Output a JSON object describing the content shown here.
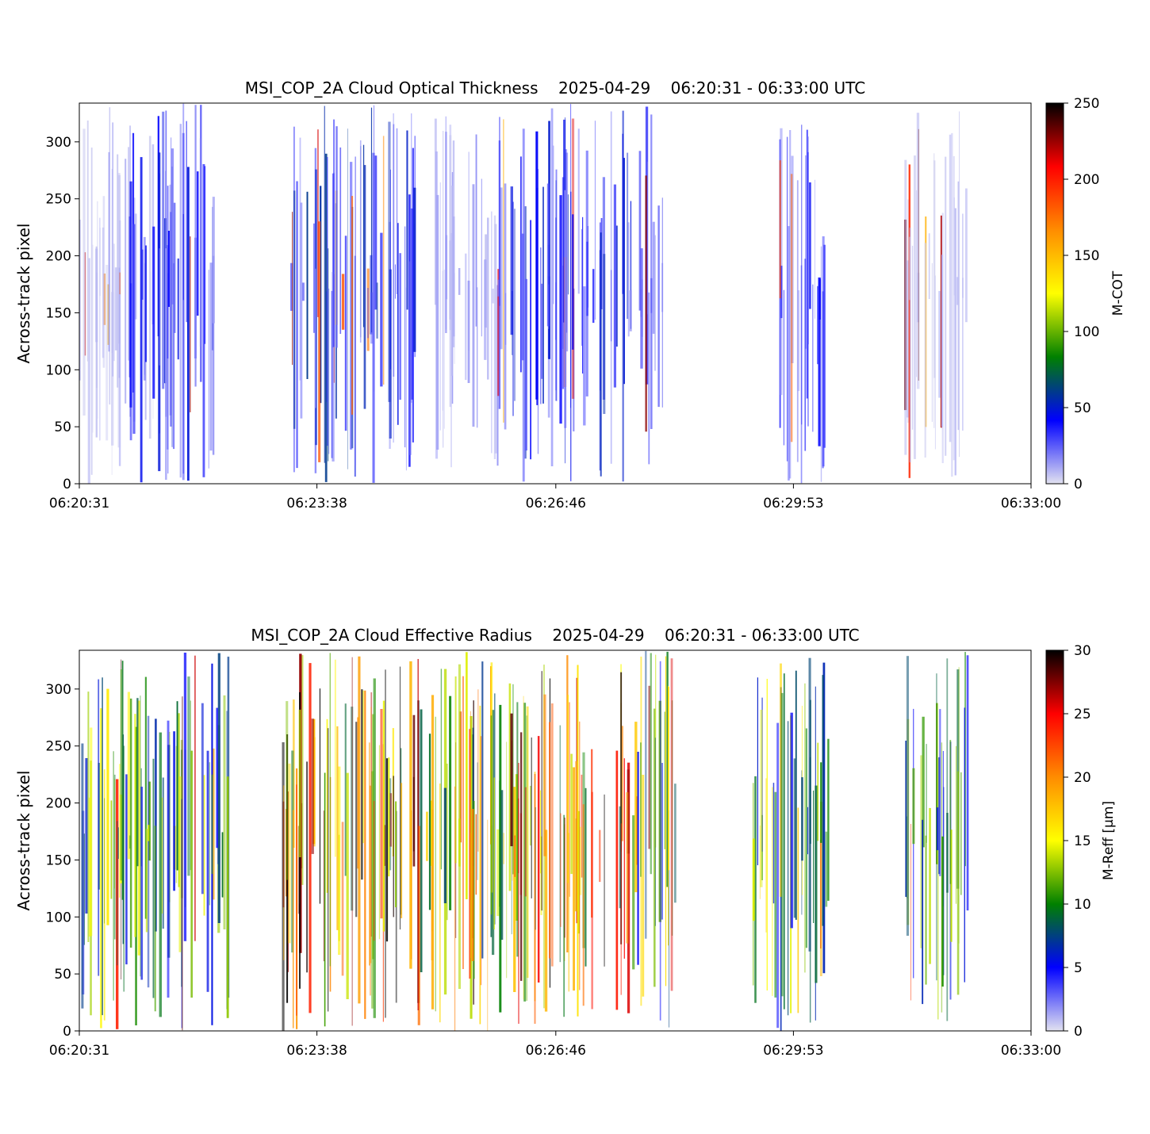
{
  "chart_data": [
    {
      "type": "heatmap",
      "title": "MSI_COP_2A Cloud Optical Thickness    2025-04-29    06:20:31 - 06:33:00 UTC",
      "xlabel": "",
      "ylabel": "Across-track pixel",
      "x_ticks": [
        "06:20:31",
        "06:23:38",
        "06:26:46",
        "06:29:53",
        "06:33:00"
      ],
      "xlim": [
        "06:20:31",
        "06:33:00"
      ],
      "ylim": [
        0,
        334
      ],
      "y_ticks": [
        0,
        50,
        100,
        150,
        200,
        250,
        300
      ],
      "colorbar": {
        "label": "M-COT",
        "range": [
          0,
          250
        ],
        "ticks": [
          0,
          50,
          100,
          150,
          200,
          250
        ],
        "colors": [
          "#d9d9ea",
          "#0000ff",
          "#008000",
          "#ffff00",
          "#ff8c00",
          "#ff0000",
          "#000000"
        ]
      },
      "grid": false,
      "cloud_bands": [
        {
          "x_start": "06:20:31",
          "x_end": "06:21:30",
          "value": 8
        },
        {
          "x_start": "06:21:10",
          "x_end": "06:22:20",
          "value": 35
        },
        {
          "x_start": "06:23:15",
          "x_end": "06:24:05",
          "value": 45
        },
        {
          "x_start": "06:24:05",
          "x_end": "06:25:00",
          "value": 40
        },
        {
          "x_start": "06:25:10",
          "x_end": "06:26:00",
          "value": 12
        },
        {
          "x_start": "06:26:00",
          "x_end": "06:27:45",
          "value": 38
        },
        {
          "x_start": "06:27:50",
          "x_end": "06:28:10",
          "value": 20
        },
        {
          "x_start": "06:29:40",
          "x_end": "06:30:20",
          "value": 30
        },
        {
          "x_start": "06:31:20",
          "x_end": "06:32:10",
          "value": 6
        }
      ]
    },
    {
      "type": "heatmap",
      "title": "MSI_COP_2A Cloud Effective Radius    2025-04-29    06:20:31 - 06:33:00 UTC",
      "xlabel": "",
      "ylabel": "Across-track pixel",
      "x_ticks": [
        "06:20:31",
        "06:23:38",
        "06:26:46",
        "06:29:53",
        "06:33:00"
      ],
      "xlim": [
        "06:20:31",
        "06:33:00"
      ],
      "ylim": [
        0,
        334
      ],
      "y_ticks": [
        0,
        50,
        100,
        150,
        200,
        250,
        300
      ],
      "colorbar": {
        "label": "M-Reff [μm]",
        "range": [
          0,
          30
        ],
        "ticks": [
          0,
          5,
          10,
          15,
          20,
          25,
          30
        ],
        "colors": [
          "#d9d9ea",
          "#0000ff",
          "#008000",
          "#ffff00",
          "#ff8c00",
          "#ff0000",
          "#000000"
        ]
      },
      "grid": false,
      "cloud_bands": [
        {
          "x_start": "06:20:31",
          "x_end": "06:22:30",
          "value": 11
        },
        {
          "x_start": "06:23:10",
          "x_end": "06:24:05",
          "value": 22
        },
        {
          "x_start": "06:24:05",
          "x_end": "06:25:00",
          "value": 24
        },
        {
          "x_start": "06:25:00",
          "x_end": "06:26:10",
          "value": 16
        },
        {
          "x_start": "06:26:10",
          "x_end": "06:27:45",
          "value": 22
        },
        {
          "x_start": "06:27:45",
          "x_end": "06:28:20",
          "value": 12
        },
        {
          "x_start": "06:29:20",
          "x_end": "06:30:20",
          "value": 12
        },
        {
          "x_start": "06:31:20",
          "x_end": "06:32:10",
          "value": 10
        }
      ]
    }
  ]
}
